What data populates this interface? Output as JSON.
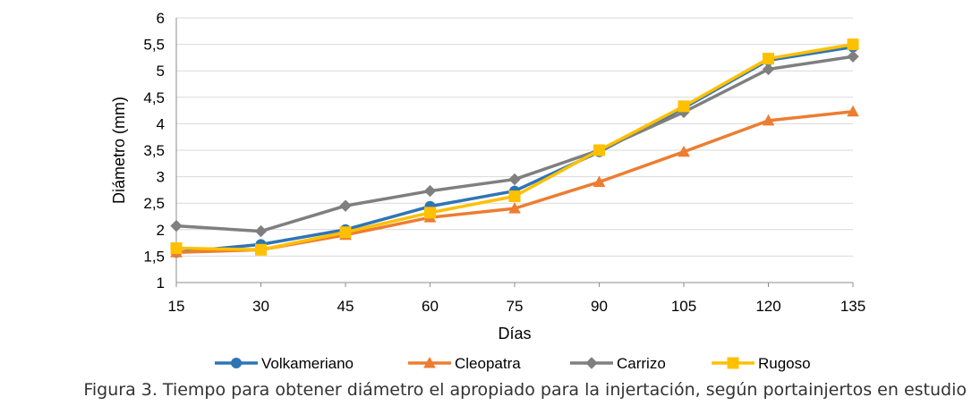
{
  "chart_data": {
    "type": "line",
    "title": "",
    "xlabel": "Días",
    "ylabel": "Diámetro (mm)",
    "x": [
      15,
      30,
      45,
      60,
      75,
      90,
      105,
      120,
      135
    ],
    "x_tick_labels": [
      "15",
      "30",
      "45",
      "60",
      "75",
      "90",
      "105",
      "120",
      "135"
    ],
    "y_tick_labels": [
      "1",
      "1,5",
      "2",
      "2,5",
      "3",
      "3,5",
      "4",
      "4,5",
      "5",
      "5,5",
      "6"
    ],
    "ylim": [
      1,
      6
    ],
    "y_step": 0.5,
    "grid": true,
    "legend_position": "bottom",
    "series": [
      {
        "name": "Volkameriano",
        "color": "#2E75B6",
        "marker": "circle",
        "values": [
          1.57,
          1.72,
          2.0,
          2.44,
          2.73,
          3.47,
          4.3,
          5.2,
          5.45
        ]
      },
      {
        "name": "Cleopatra",
        "color": "#ED7D31",
        "marker": "triangle",
        "values": [
          1.57,
          1.62,
          1.9,
          2.23,
          2.4,
          2.9,
          3.47,
          4.06,
          4.23
        ]
      },
      {
        "name": "Carrizo",
        "color": "#7F7F7F",
        "marker": "diamond",
        "values": [
          2.07,
          1.97,
          2.45,
          2.73,
          2.95,
          3.5,
          4.22,
          5.03,
          5.27
        ]
      },
      {
        "name": "Rugoso",
        "color": "#FFC000",
        "marker": "square",
        "values": [
          1.65,
          1.62,
          1.95,
          2.32,
          2.63,
          3.5,
          4.33,
          5.23,
          5.5
        ]
      }
    ]
  },
  "caption": "Figura 3. Tiempo para obtener diámetro el apropiado para la injertación, según portainjertos en estudio"
}
